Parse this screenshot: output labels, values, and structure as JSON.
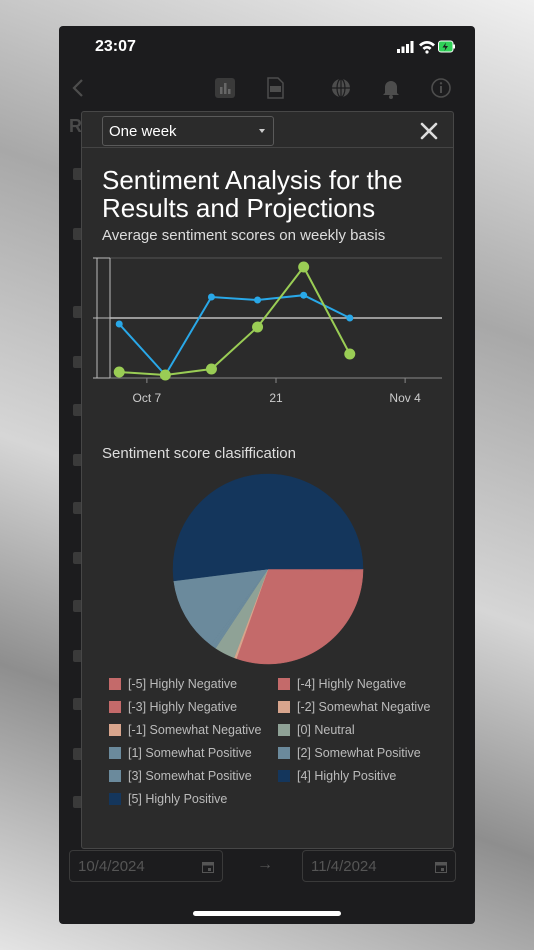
{
  "status_bar": {
    "time": "23:07"
  },
  "background": {
    "dates": {
      "start": "10/4/2024",
      "end": "11/4/2024",
      "arrow": "→"
    },
    "partial_heading": "R"
  },
  "modal": {
    "period_select": {
      "value": "One week"
    },
    "title": "Sentiment Analysis for the Results and Projections",
    "subtitle": "Average sentiment scores on weekly basis",
    "pie_heading": "Sentiment score clasiffication"
  },
  "colors": {
    "blue_series": "#29a8e8",
    "green_series": "#9acd55",
    "highly_negative": "#c46a6a",
    "somewhat_negative": "#d8a58d",
    "neutral": "#8fa296",
    "somewhat_positive": "#6b8a9c",
    "highly_positive": "#14365c"
  },
  "chart_data": [
    {
      "type": "line",
      "title": "Sentiment Analysis for the Results and Projections",
      "subtitle": "Average sentiment scores on weekly basis",
      "x_ticks": [
        "Oct 7",
        "21",
        "Nov 4"
      ],
      "x": [
        "2024-10-04",
        "2024-10-09",
        "2024-10-14",
        "2024-10-19",
        "2024-10-24",
        "2024-10-29",
        "2024-11-03"
      ],
      "ylim": [
        -1,
        1
      ],
      "grid": true,
      "series": [
        {
          "name": "",
          "color": "#29a8e8",
          "values": [
            -0.1,
            -0.95,
            0.35,
            0.3,
            0.38,
            0.0,
            null
          ]
        },
        {
          "name": "",
          "color": "#9acd55",
          "values": [
            -0.9,
            -0.95,
            -0.85,
            -0.15,
            0.85,
            -0.6,
            null
          ]
        }
      ]
    },
    {
      "type": "pie",
      "title": "Sentiment score clasiffication",
      "legend_position": "bottom",
      "slices": [
        {
          "label": "[-5] Highly Negative",
          "value": 0.2,
          "color": "#c46a6a"
        },
        {
          "label": "[-4] Highly Negative",
          "value": 0.2,
          "color": "#c46a6a"
        },
        {
          "label": "[-3] Highly Negative",
          "value": 30.0,
          "color": "#c46a6a"
        },
        {
          "label": "[-2] Somewhat Negative",
          "value": 0.2,
          "color": "#d8a58d"
        },
        {
          "label": "[-1] Somewhat Negative",
          "value": 0.2,
          "color": "#d8a58d"
        },
        {
          "label": "[0] Neutral",
          "value": 3.5,
          "color": "#8fa296"
        },
        {
          "label": "[1] Somewhat Positive",
          "value": 0.5,
          "color": "#6b8a9c"
        },
        {
          "label": "[2] Somewhat Positive",
          "value": 0.5,
          "color": "#6b8a9c"
        },
        {
          "label": "[3] Somewhat Positive",
          "value": 12.7,
          "color": "#6b8a9c"
        },
        {
          "label": "[4] Highly Positive",
          "value": 0.2,
          "color": "#14365c"
        },
        {
          "label": "[5] Highly Positive",
          "value": 51.8,
          "color": "#14365c"
        }
      ]
    }
  ]
}
